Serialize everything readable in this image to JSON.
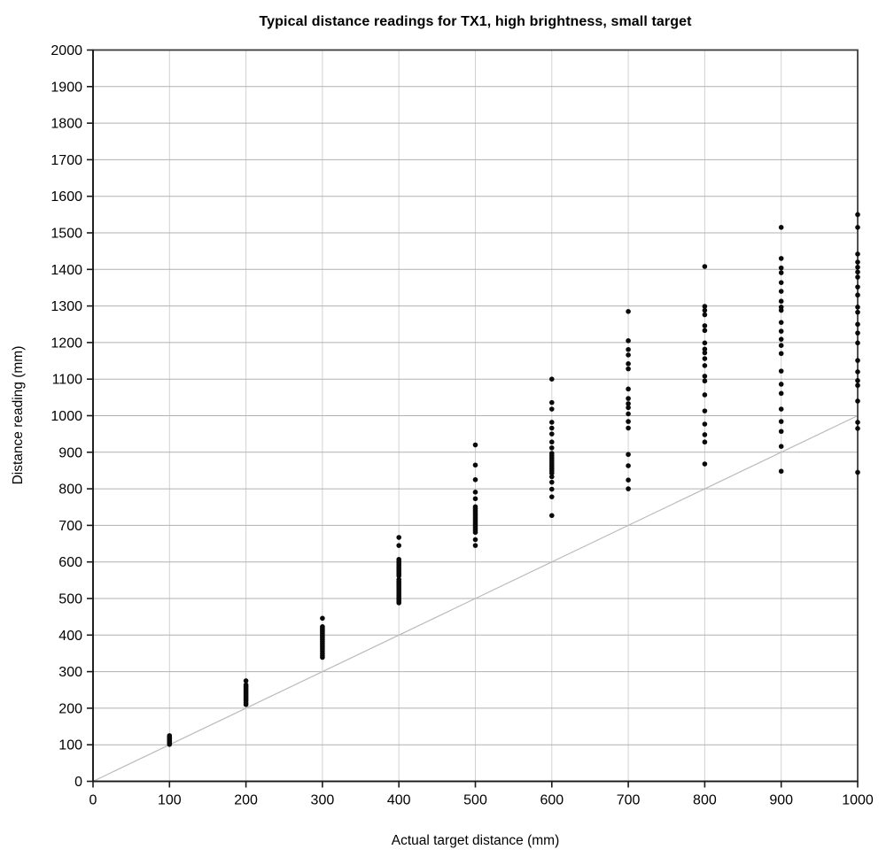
{
  "chart_data": {
    "type": "scatter",
    "title": "Typical distance readings for TX1, high brightness, small target",
    "xlabel": "Actual target distance (mm)",
    "ylabel": "Distance reading (mm)",
    "xlim": [
      0,
      1000
    ],
    "ylim": [
      0,
      2000
    ],
    "x_ticks": [
      0,
      100,
      200,
      300,
      400,
      500,
      600,
      700,
      800,
      900,
      1000
    ],
    "y_ticks": [
      0,
      100,
      200,
      300,
      400,
      500,
      600,
      700,
      800,
      900,
      1000,
      1100,
      1200,
      1300,
      1400,
      1500,
      1600,
      1700,
      1800,
      1900,
      2000
    ],
    "grid": true,
    "legend": false,
    "reference_line": {
      "name": "identity-line",
      "from": [
        0,
        0
      ],
      "to": [
        1000,
        1000
      ]
    },
    "series": [
      {
        "name": "distance-readings",
        "marker": "circle",
        "clusters": [
          {
            "x": 100,
            "readings": [
              125,
              122,
              120,
              118,
              116,
              114,
              112,
              110,
              108,
              106,
              104,
              101
            ]
          },
          {
            "x": 200,
            "readings": [
              275,
              264,
              260,
              256,
              252,
              248,
              244,
              240,
              236,
              232,
              228,
              224,
              220,
              215,
              210
            ]
          },
          {
            "x": 300,
            "readings": [
              446,
              423,
              419,
              415,
              411,
              407,
              403,
              399,
              395,
              391,
              387,
              382,
              377,
              372,
              367,
              362,
              356,
              350,
              344,
              339
            ]
          },
          {
            "x": 400,
            "readings": [
              667,
              645,
              607,
              602,
              597,
              592,
              587,
              582,
              577,
              572,
              567,
              562,
              552,
              547,
              542,
              537,
              532,
              527,
              522,
              517,
              512,
              507,
              502,
              497,
              492,
              488
            ]
          },
          {
            "x": 500,
            "readings": [
              920,
              865,
              825,
              791,
              773,
              751,
              746,
              741,
              736,
              731,
              726,
              721,
              716,
              711,
              706,
              701,
              696,
              691,
              686,
              681,
              661,
              645
            ]
          },
          {
            "x": 600,
            "readings": [
              1100,
              1036,
              1018,
              982,
              966,
              950,
              928,
              912,
              897,
              891,
              885,
              879,
              873,
              867,
              861,
              855,
              849,
              843,
              833,
              818,
              799,
              778,
              727
            ]
          },
          {
            "x": 700,
            "readings": [
              1285,
              1205,
              1181,
              1166,
              1142,
              1128,
              1073,
              1047,
              1033,
              1022,
              1005,
              984,
              966,
              894,
              863,
              824,
              800
            ]
          },
          {
            "x": 800,
            "readings": [
              1408,
              1299,
              1288,
              1276,
              1246,
              1233,
              1199,
              1182,
              1172,
              1156,
              1137,
              1108,
              1095,
              1057,
              1013,
              977,
              948,
              928,
              868
            ]
          },
          {
            "x": 900,
            "readings": [
              1515,
              1430,
              1404,
              1391,
              1364,
              1340,
              1313,
              1297,
              1288,
              1255,
              1231,
              1209,
              1192,
              1170,
              1122,
              1086,
              1061,
              1018,
              984,
              957,
              916,
              848
            ]
          },
          {
            "x": 1000,
            "readings": [
              1550,
              1515,
              1442,
              1420,
              1406,
              1393,
              1379,
              1352,
              1330,
              1297,
              1283,
              1250,
              1226,
              1199,
              1151,
              1120,
              1096,
              1083,
              1040,
              982,
              965,
              845
            ]
          }
        ]
      }
    ],
    "colors": {
      "point": "#0a0a0a",
      "grid_horizontal": "#b0b0b0",
      "grid_vertical": "#d2d2d2",
      "frame": "#3c3c3c",
      "axis": "#1a1a1a",
      "reference_line": "#bbbbbb",
      "background": "#ffffff"
    }
  }
}
